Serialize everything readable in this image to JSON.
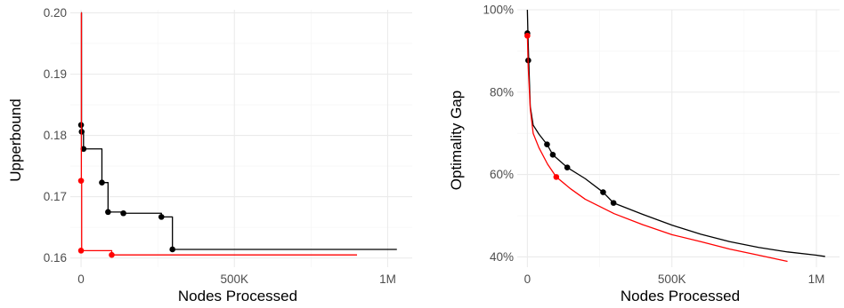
{
  "chart_data": [
    {
      "type": "line",
      "xlabel": "Nodes Processed",
      "ylabel": "Upperbound",
      "xlim": [
        -35000,
        1080000
      ],
      "ylim": [
        0.1585,
        0.2005
      ],
      "x_ticks": [
        0,
        500000,
        1000000
      ],
      "x_tick_labels": [
        "0",
        "500K",
        "1M"
      ],
      "y_ticks": [
        0.16,
        0.17,
        0.18,
        0.19,
        0.2
      ],
      "y_tick_labels": [
        "0.16",
        "0.17",
        "0.18",
        "0.19",
        "0.20"
      ],
      "step": true,
      "grid": true,
      "series": [
        {
          "color": "#000000",
          "line": [
            [
              0,
              0.2
            ],
            [
              1500,
              0.1817
            ],
            [
              3000,
              0.1806
            ],
            [
              8000,
              0.1778
            ],
            [
              68000,
              0.1723
            ],
            [
              88000,
              0.1675
            ],
            [
              138000,
              0.1673
            ],
            [
              262000,
              0.1667
            ],
            [
              298000,
              0.1614
            ],
            [
              1030000,
              0.1614
            ]
          ],
          "points": [
            [
              0,
              0.1817
            ],
            [
              2000,
              0.1806
            ],
            [
              8000,
              0.1778
            ],
            [
              68000,
              0.1723
            ],
            [
              88000,
              0.1675
            ],
            [
              138000,
              0.1673
            ],
            [
              262000,
              0.1667
            ],
            [
              298000,
              0.1614
            ]
          ]
        },
        {
          "color": "#ff0000",
          "line": [
            [
              0,
              0.2
            ],
            [
              1000,
              0.1726
            ],
            [
              2000,
              0.1612
            ],
            [
              100000,
              0.1605
            ],
            [
              900000,
              0.1605
            ]
          ],
          "points": [
            [
              0,
              0.1726
            ],
            [
              0,
              0.1612
            ],
            [
              100000,
              0.1605
            ]
          ]
        }
      ]
    },
    {
      "type": "line",
      "xlabel": "Nodes Processed",
      "ylabel": "Optimality Gap",
      "xlim": [
        -35000,
        1080000
      ],
      "ylim": [
        0.375,
        1.0
      ],
      "x_ticks": [
        0,
        500000,
        1000000
      ],
      "x_tick_labels": [
        "0",
        "500K",
        "1M"
      ],
      "y_ticks": [
        0.4,
        0.6,
        0.8,
        1.0
      ],
      "y_tick_labels": [
        "40%",
        "60%",
        "80%",
        "100%"
      ],
      "step": false,
      "grid": true,
      "series": [
        {
          "color": "#000000",
          "line": [
            [
              0,
              1.0
            ],
            [
              2000,
              0.94
            ],
            [
              5000,
              0.87
            ],
            [
              10000,
              0.765
            ],
            [
              20000,
              0.72
            ],
            [
              40000,
              0.698
            ],
            [
              68000,
              0.673
            ],
            [
              88000,
              0.648
            ],
            [
              138000,
              0.617
            ],
            [
              200000,
              0.59
            ],
            [
              262000,
              0.557
            ],
            [
              298000,
              0.531
            ],
            [
              400000,
              0.503
            ],
            [
              500000,
              0.477
            ],
            [
              600000,
              0.455
            ],
            [
              700000,
              0.437
            ],
            [
              800000,
              0.423
            ],
            [
              900000,
              0.412
            ],
            [
              1000000,
              0.404
            ],
            [
              1030000,
              0.401
            ]
          ],
          "points": [
            [
              0,
              0.943
            ],
            [
              3000,
              0.877
            ],
            [
              68000,
              0.673
            ],
            [
              88000,
              0.648
            ],
            [
              138000,
              0.617
            ],
            [
              262000,
              0.557
            ],
            [
              298000,
              0.531
            ]
          ]
        },
        {
          "color": "#ff0000",
          "line": [
            [
              0,
              0.94
            ],
            [
              3000,
              0.86
            ],
            [
              10000,
              0.76
            ],
            [
              20000,
              0.7
            ],
            [
              40000,
              0.665
            ],
            [
              70000,
              0.625
            ],
            [
              100000,
              0.594
            ],
            [
              150000,
              0.565
            ],
            [
              200000,
              0.54
            ],
            [
              300000,
              0.505
            ],
            [
              400000,
              0.478
            ],
            [
              500000,
              0.454
            ],
            [
              600000,
              0.437
            ],
            [
              700000,
              0.419
            ],
            [
              800000,
              0.404
            ],
            [
              900000,
              0.389
            ]
          ],
          "points": [
            [
              0,
              0.937
            ],
            [
              100000,
              0.594
            ]
          ]
        }
      ]
    }
  ]
}
